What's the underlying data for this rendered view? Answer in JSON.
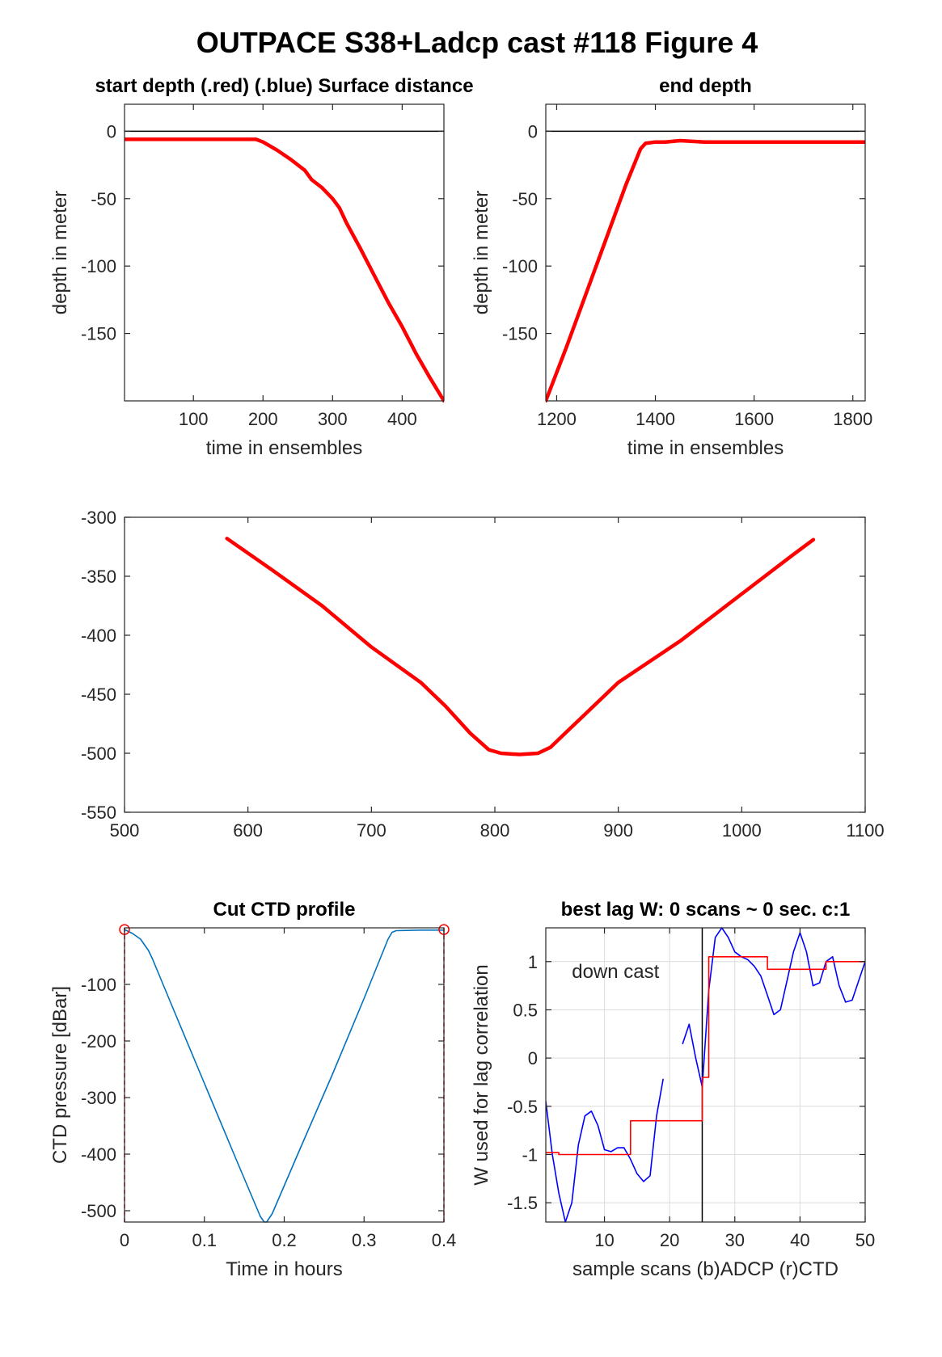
{
  "figure_title": "OUTPACE S38+Ladcp cast #118   Figure 4",
  "colors": {
    "red": "#ff0000",
    "blue": "#0000ff",
    "ctd_blue": "#0072bd",
    "axis": "#262626",
    "grid": "#dcdcdc"
  },
  "chart_data": [
    {
      "id": "start_depth",
      "type": "line",
      "title": "start depth (.red) (.blue) Surface distance",
      "xlabel": "time in ensembles",
      "ylabel": "depth in meter",
      "xlim": [
        1,
        460
      ],
      "ylim": [
        -200,
        20
      ],
      "xticks": [
        100,
        200,
        300,
        400
      ],
      "yticks": [
        0,
        -50,
        -100,
        -150
      ],
      "grid": false,
      "hline": 0,
      "series": [
        {
          "color": "red",
          "x": [
            1,
            50,
            100,
            150,
            190,
            200,
            220,
            240,
            260,
            270,
            285,
            300,
            310,
            320,
            340,
            360,
            380,
            400,
            420,
            440,
            460
          ],
          "y": [
            -6,
            -6,
            -6,
            -6,
            -6,
            -8,
            -14,
            -21,
            -29,
            -36,
            -42,
            -50,
            -57,
            -68,
            -87,
            -107,
            -127,
            -145,
            -165,
            -183,
            -200
          ]
        }
      ]
    },
    {
      "id": "end_depth",
      "type": "line",
      "title": "end depth",
      "xlabel": "time in ensembles",
      "ylabel": "depth in meter",
      "xlim": [
        1178,
        1825
      ],
      "ylim": [
        -200,
        20
      ],
      "xticks": [
        1200,
        1400,
        1600,
        1800
      ],
      "yticks": [
        0,
        -50,
        -100,
        -150
      ],
      "grid": false,
      "hline": 0,
      "series": [
        {
          "color": "red",
          "x": [
            1178,
            1220,
            1260,
            1300,
            1340,
            1370,
            1380,
            1400,
            1420,
            1450,
            1500,
            1550,
            1600,
            1700,
            1825
          ],
          "y": [
            -200,
            -160,
            -120,
            -80,
            -40,
            -13,
            -9,
            -8,
            -8,
            -7,
            -8,
            -8,
            -8,
            -8,
            -8
          ]
        }
      ]
    },
    {
      "id": "middle",
      "type": "line",
      "title": "",
      "xlabel": "",
      "ylabel": "",
      "xlim": [
        500,
        1100
      ],
      "ylim": [
        -550,
        -300
      ],
      "xticks": [
        500,
        600,
        700,
        800,
        900,
        1000,
        1100
      ],
      "yticks": [
        -300,
        -350,
        -400,
        -450,
        -500,
        -550
      ],
      "grid": false,
      "series": [
        {
          "color": "red",
          "x": [
            583,
            620,
            660,
            700,
            740,
            760,
            780,
            795,
            805,
            820,
            835,
            845,
            860,
            900,
            950,
            1000,
            1040,
            1058
          ],
          "y": [
            -318,
            -345,
            -375,
            -410,
            -440,
            -460,
            -483,
            -497,
            -500,
            -501,
            -500,
            -495,
            -480,
            -440,
            -405,
            -365,
            -333,
            -319
          ]
        }
      ]
    },
    {
      "id": "ctd_profile",
      "type": "line",
      "title": "Cut CTD profile",
      "xlabel": "Time in hours",
      "ylabel": "CTD pressure [dBar]",
      "xlim": [
        0,
        0.4
      ],
      "ylim": [
        -520,
        0
      ],
      "xticks": [
        0,
        0.1,
        0.2,
        0.3,
        0.4
      ],
      "xticklabels": [
        "0",
        "0.1",
        "0.2",
        "0.3",
        "0.4"
      ],
      "yticks": [
        -100,
        -200,
        -300,
        -400,
        -500
      ],
      "grid": false,
      "cut_markers": [
        [
          0,
          -3
        ],
        [
          0.4,
          -3
        ]
      ],
      "series": [
        {
          "color": "ctd_blue",
          "x": [
            0,
            0.01,
            0.02,
            0.03,
            0.035,
            0.06,
            0.1,
            0.14,
            0.17,
            0.175,
            0.178,
            0.185,
            0.22,
            0.26,
            0.3,
            0.32,
            0.33,
            0.335,
            0.34,
            0.37,
            0.4
          ],
          "y": [
            -3,
            -10,
            -20,
            -40,
            -55,
            -140,
            -275,
            -410,
            -510,
            -520,
            -520,
            -505,
            -390,
            -260,
            -125,
            -55,
            -20,
            -8,
            -5,
            -4,
            -4
          ]
        }
      ]
    },
    {
      "id": "best_lag",
      "type": "line",
      "title": "best lag W: 0 scans ~ 0 sec.  c:1",
      "xlabel": "sample scans (b)ADCP (r)CTD",
      "ylabel": "W used for lag correlation",
      "xlim": [
        1,
        50
      ],
      "ylim": [
        -1.7,
        1.35
      ],
      "xticks": [
        10,
        20,
        30,
        40,
        50
      ],
      "yticks": [
        1,
        0.5,
        0,
        -0.5,
        -1,
        -1.5
      ],
      "yticklabels": [
        "1",
        "0.5",
        "0",
        "-0.5",
        "-1",
        "-1.5"
      ],
      "grid": true,
      "vline": 25,
      "annotation": "down cast",
      "series": [
        {
          "color": "blue",
          "segments": [
            {
              "x": [
                1,
                2,
                3,
                4,
                5,
                6,
                7,
                8,
                9,
                10,
                11,
                12,
                13,
                14,
                15,
                16,
                17,
                18,
                19
              ],
              "y": [
                -0.45,
                -1.0,
                -1.4,
                -1.7,
                -1.5,
                -0.9,
                -0.6,
                -0.55,
                -0.7,
                -0.95,
                -0.97,
                -0.93,
                -0.93,
                -1.05,
                -1.2,
                -1.28,
                -1.22,
                -0.6,
                -0.22
              ]
            },
            {
              "x": [
                22,
                23,
                24,
                25,
                26,
                27,
                28,
                29,
                30,
                31,
                32,
                33,
                34,
                35,
                36,
                37,
                38,
                39,
                40,
                41,
                42,
                43,
                44,
                45,
                46,
                47,
                48,
                49,
                50
              ],
              "y": [
                0.15,
                0.35,
                0.0,
                -0.3,
                0.7,
                1.25,
                1.35,
                1.25,
                1.1,
                1.05,
                1.02,
                0.95,
                0.85,
                0.65,
                0.45,
                0.5,
                0.8,
                1.1,
                1.3,
                1.1,
                0.75,
                0.78,
                1.0,
                1.05,
                0.75,
                0.58,
                0.6,
                0.8,
                1.0
              ]
            }
          ]
        },
        {
          "color": "red",
          "segments": [
            {
              "x": [
                1,
                3,
                3,
                14,
                14,
                25,
                25,
                26,
                26,
                35,
                35,
                44,
                44,
                50
              ],
              "y": [
                -0.98,
                -0.98,
                -1.0,
                -1.0,
                -0.65,
                -0.65,
                -0.2,
                -0.2,
                1.05,
                1.05,
                0.92,
                0.92,
                1.0,
                1.0
              ]
            }
          ]
        }
      ]
    }
  ]
}
